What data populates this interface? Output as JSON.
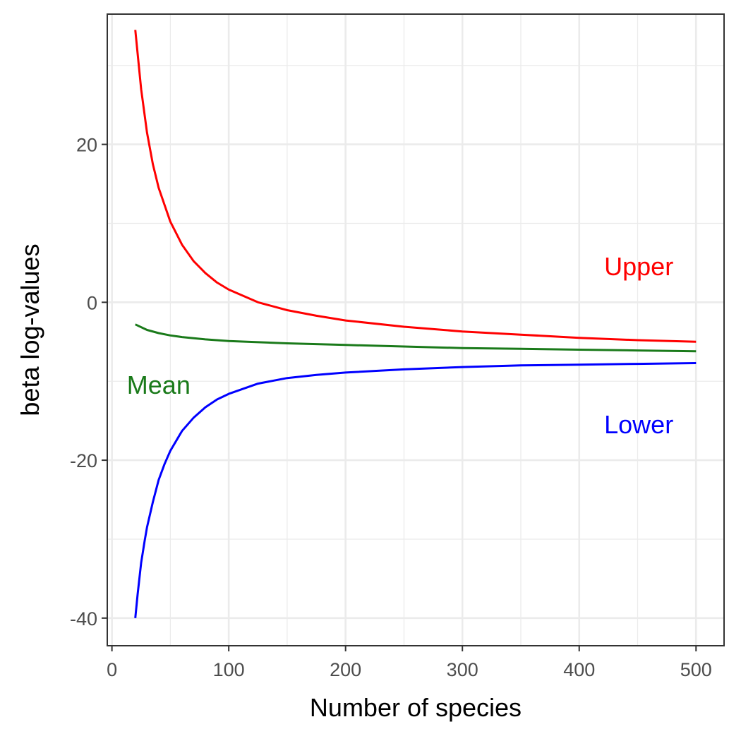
{
  "chart_data": {
    "type": "line",
    "title": "",
    "xlabel": "Number of species",
    "ylabel": "beta log-values",
    "xlim": [
      -4,
      524
    ],
    "ylim": [
      -43.5,
      36.5
    ],
    "x_major_ticks": [
      0,
      100,
      200,
      300,
      400,
      500
    ],
    "x_minor_ticks": [
      50,
      150,
      250,
      350,
      450
    ],
    "y_major_ticks": [
      -40,
      -20,
      0,
      20
    ],
    "y_minor_ticks": [
      -30,
      -10,
      10,
      30
    ],
    "x_tick_labels": [
      "0",
      "100",
      "200",
      "300",
      "400",
      "500"
    ],
    "y_tick_labels": [
      "-40",
      "-20",
      "0",
      "20"
    ],
    "grid": true,
    "legend": "none",
    "series": [
      {
        "key": "upper",
        "color": "#ff0000",
        "x": [
          20,
          25,
          30,
          35,
          40,
          50,
          60,
          70,
          80,
          90,
          100,
          125,
          150,
          175,
          200,
          250,
          300,
          350,
          400,
          450,
          500
        ],
        "y": [
          34.5,
          27,
          21.5,
          17.5,
          14.5,
          10.2,
          7.3,
          5.2,
          3.7,
          2.5,
          1.6,
          0,
          -1,
          -1.7,
          -2.3,
          -3.1,
          -3.7,
          -4.1,
          -4.5,
          -4.8,
          -5.0
        ]
      },
      {
        "key": "mean",
        "color": "#1a7a1a",
        "x": [
          20,
          30,
          40,
          50,
          60,
          80,
          100,
          150,
          200,
          250,
          300,
          350,
          400,
          450,
          500
        ],
        "y": [
          -2.8,
          -3.5,
          -3.9,
          -4.2,
          -4.4,
          -4.7,
          -4.9,
          -5.2,
          -5.4,
          -5.6,
          -5.8,
          -5.9,
          -6.0,
          -6.1,
          -6.2
        ]
      },
      {
        "key": "lower",
        "color": "#0000ff",
        "x": [
          20,
          22,
          25,
          28,
          30,
          35,
          40,
          45,
          50,
          60,
          70,
          80,
          90,
          100,
          125,
          150,
          175,
          200,
          250,
          300,
          350,
          400,
          450,
          500
        ],
        "y": [
          -40,
          -37,
          -33,
          -30.2,
          -28.5,
          -25.3,
          -22.5,
          -20.5,
          -18.8,
          -16.3,
          -14.6,
          -13.3,
          -12.3,
          -11.6,
          -10.3,
          -9.6,
          -9.2,
          -8.9,
          -8.5,
          -8.2,
          -8.0,
          -7.9,
          -7.8,
          -7.7
        ]
      }
    ],
    "annotations": [
      {
        "key": "upper",
        "text": "Upper",
        "x": 451,
        "y": 4.5,
        "anchor": "middle",
        "color": "#ff0000"
      },
      {
        "key": "mean",
        "text": "Mean",
        "x": 40,
        "y": -10.5,
        "anchor": "middle",
        "color": "#1a7a1a"
      },
      {
        "key": "lower",
        "text": "Lower",
        "x": 451,
        "y": -15.5,
        "anchor": "middle",
        "color": "#0000ff"
      }
    ]
  }
}
